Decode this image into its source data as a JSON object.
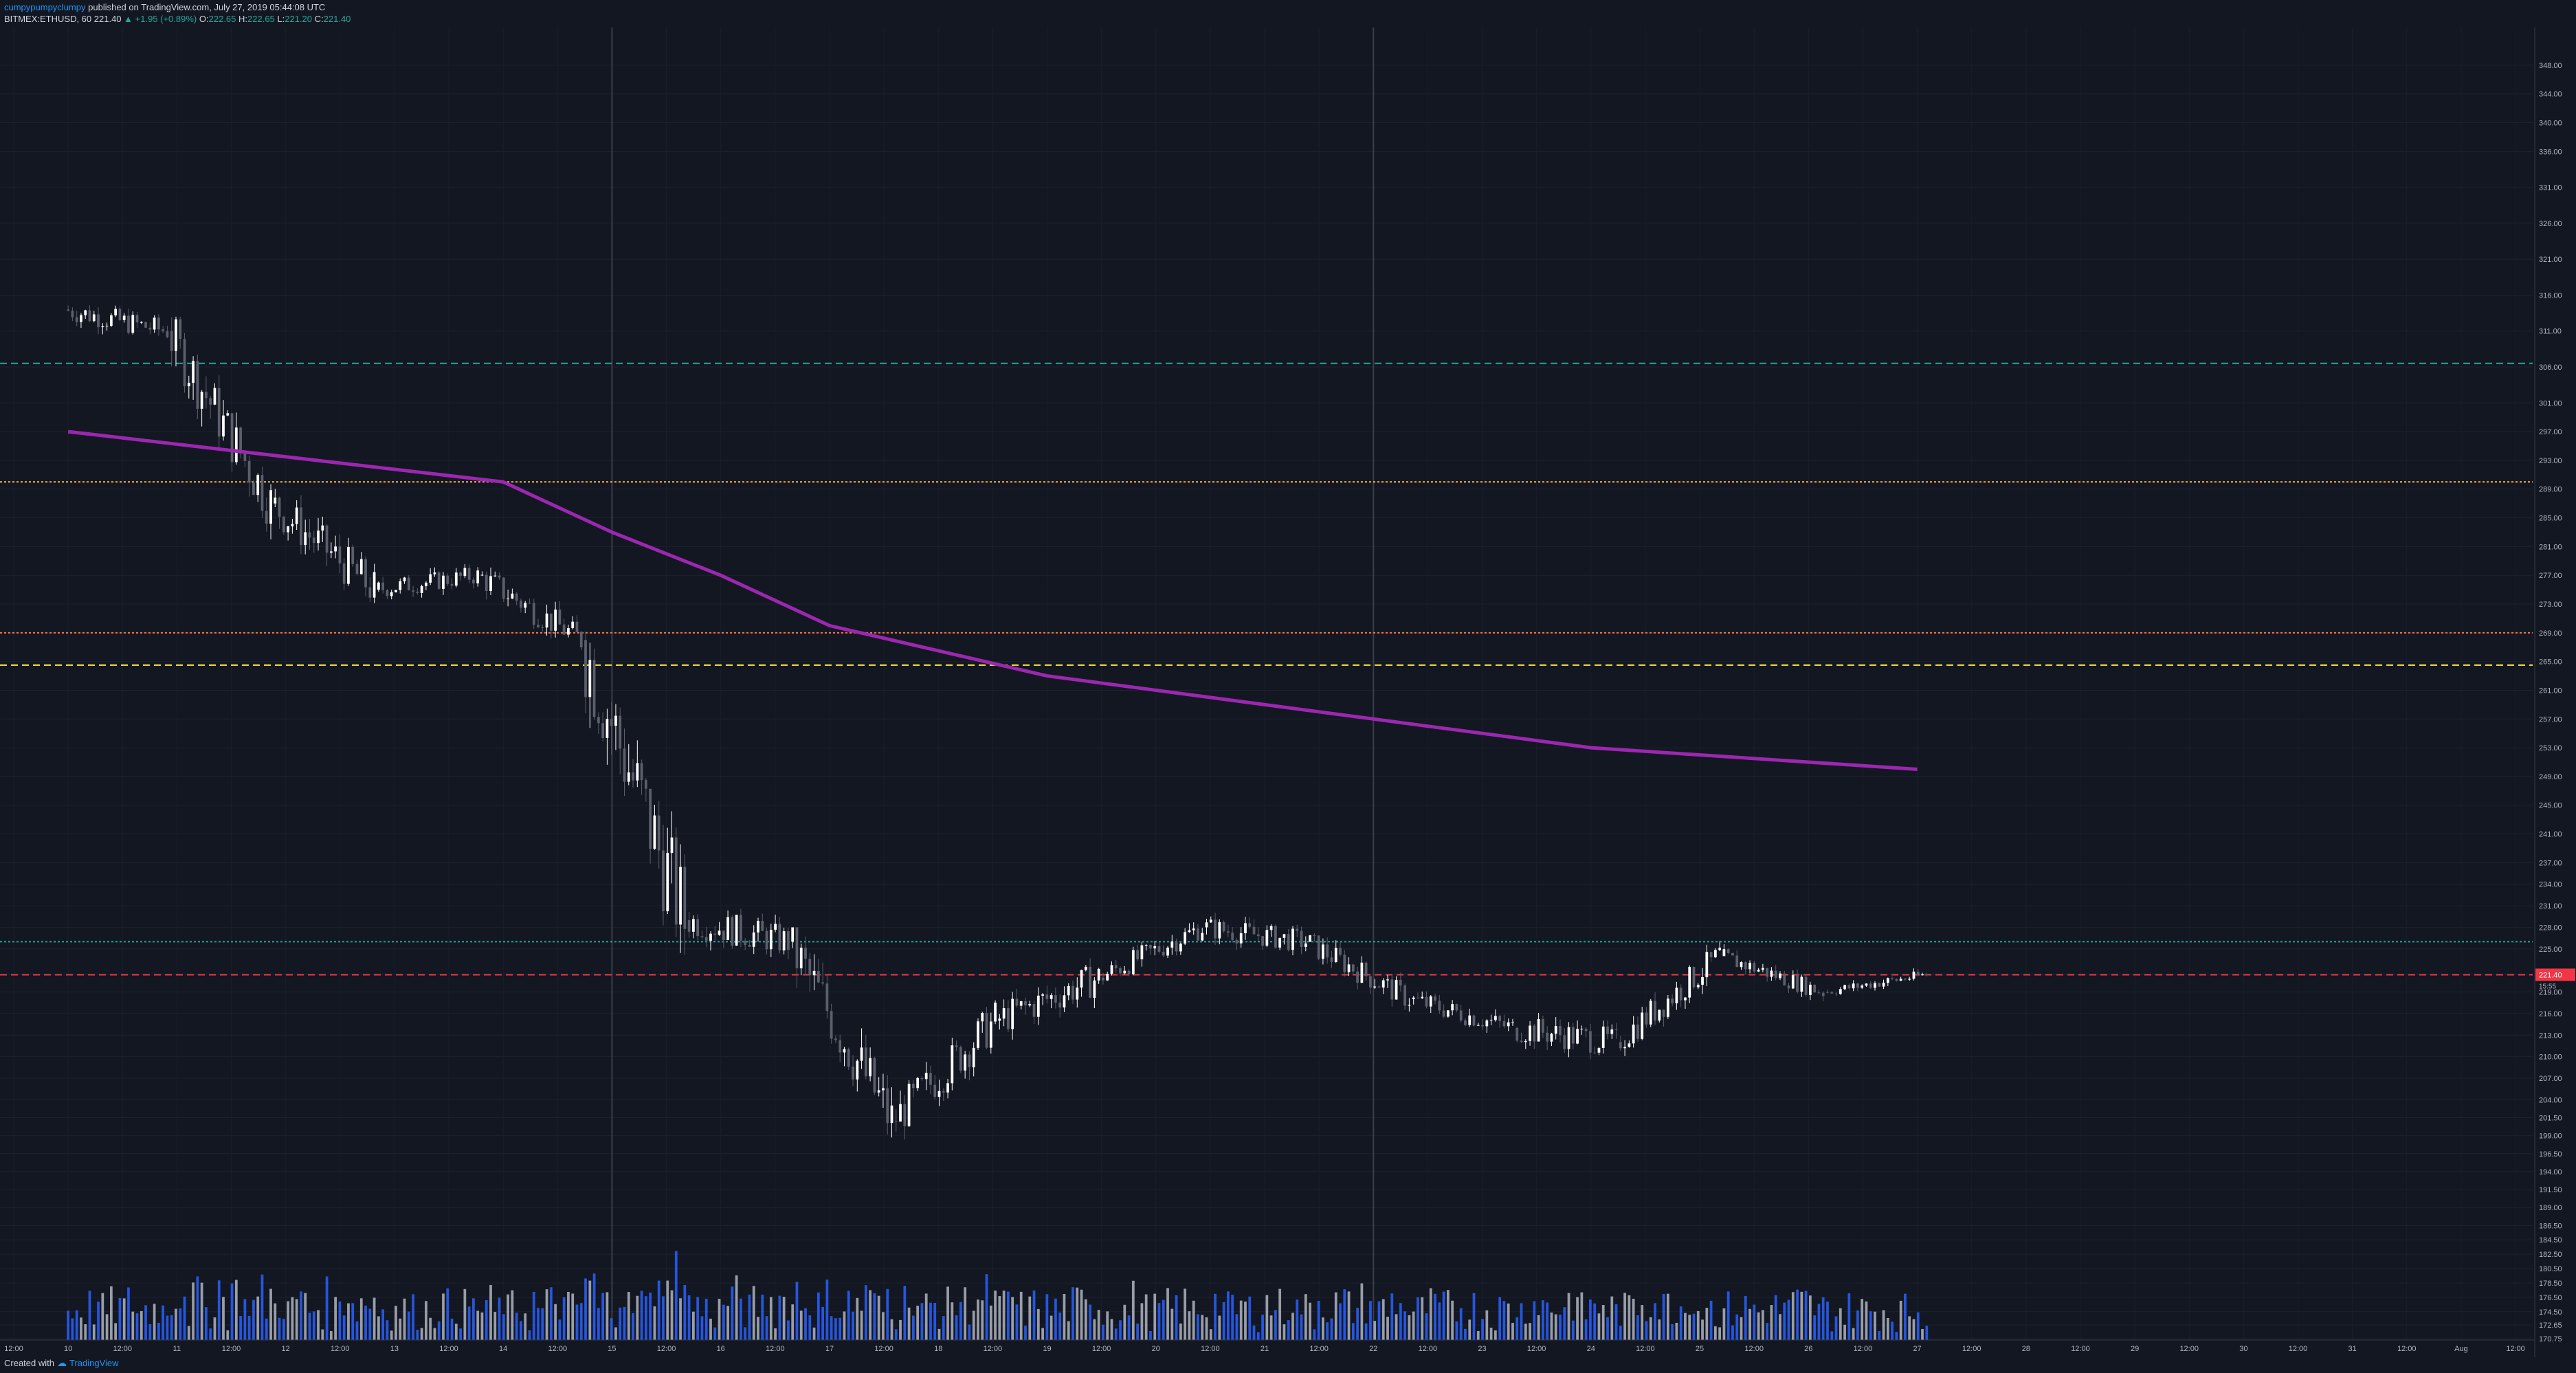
{
  "header": {
    "author": "cumpypumpyclumpy",
    "published": "published on TradingView.com, July 27, 2019 05:44:08 UTC",
    "symbol": "BITMEX:ETHUSD, 60",
    "last": "221.40",
    "change": "▲ +1.95 (+0.89%)",
    "o_label": "O:",
    "o_val": "222.65",
    "h_label": "H:",
    "h_val": "222.65",
    "l_label": "L:",
    "l_val": "221.20",
    "c_label": "C:",
    "c_val": "221.40"
  },
  "footer": {
    "created_with": "Created with",
    "brand": "TradingView"
  },
  "colors": {
    "background": "#131722",
    "up": "#ffffff",
    "down": "#5b5f6b",
    "vwap": "#9c27b0",
    "price_label": "#f23645",
    "volume_up": "#b2b5be",
    "volume_down": "#2962ff"
  },
  "chart_data": {
    "type": "candlestick",
    "y_axis_ticks": [
      348.0,
      344.0,
      340.0,
      336.0,
      331.0,
      326.0,
      321.0,
      316.0,
      311.0,
      306.0,
      301.0,
      297.0,
      293.0,
      289.0,
      285.0,
      281.0,
      277.0,
      273.0,
      269.0,
      265.0,
      261.0,
      257.0,
      253.0,
      249.0,
      245.0,
      241.0,
      237.0,
      234.0,
      231.0,
      228.0,
      225.0,
      221.4,
      219.0,
      216.0,
      213.0,
      210.0,
      207.0,
      204.0,
      201.5,
      199.0,
      196.5,
      194.0,
      191.5,
      189.0,
      186.5,
      184.5,
      182.5,
      180.5,
      178.5,
      176.5,
      174.5,
      172.65,
      170.75
    ],
    "y_axis_labels": [
      "348.00",
      "344.00",
      "340.00",
      "336.00",
      "331.00",
      "326.00",
      "321.00",
      "316.00",
      "311.00",
      "306.00",
      "301.00",
      "297.00",
      "293.00",
      "289.00",
      "285.00",
      "281.00",
      "277.00",
      "273.00",
      "269.00",
      "265.00",
      "261.00",
      "257.00",
      "253.00",
      "249.00",
      "245.00",
      "241.00",
      "237.00",
      "234.00",
      "231.00",
      "228.00",
      "225.00",
      "221.40",
      "219.00",
      "216.00",
      "213.00",
      "210.00",
      "207.00",
      "204.00",
      "201.50",
      "199.00",
      "196.50",
      "194.00",
      "191.50",
      "189.00",
      "186.50",
      "184.50",
      "182.50",
      "180.50",
      "178.50",
      "176.50",
      "174.50",
      "172.65",
      "170.75"
    ],
    "x_axis_labels": [
      "12:00",
      "10",
      "12:00",
      "11",
      "12:00",
      "12",
      "12:00",
      "13",
      "12:00",
      "14",
      "12:00",
      "15",
      "12:00",
      "16",
      "12:00",
      "17",
      "12:00",
      "18",
      "12:00",
      "19",
      "12:00",
      "20",
      "12:00",
      "21",
      "12:00",
      "22",
      "12:00",
      "23",
      "12:00",
      "24",
      "12:00",
      "25",
      "12:00",
      "26",
      "12:00",
      "27",
      "12:00",
      "28",
      "12:00",
      "29",
      "12:00",
      "30",
      "12:00",
      "31",
      "12:00",
      "Aug",
      "12:00"
    ],
    "current_price": "221.40",
    "countdown": "15:55",
    "price_range": [
      170.75,
      350.0
    ],
    "daily_closes": [
      {
        "day": "10",
        "open": 314,
        "high": 317,
        "low": 304,
        "close": 311
      },
      {
        "day": "11",
        "open": 311,
        "high": 313,
        "low": 282,
        "close": 287
      },
      {
        "day": "12",
        "open": 287,
        "high": 292,
        "low": 268,
        "close": 275
      },
      {
        "day": "13",
        "open": 275,
        "high": 281,
        "low": 270,
        "close": 277
      },
      {
        "day": "14",
        "open": 277,
        "high": 279,
        "low": 263,
        "close": 268
      },
      {
        "day": "15",
        "open": 268,
        "high": 270,
        "low": 213,
        "close": 229
      },
      {
        "day": "16",
        "open": 229,
        "high": 236,
        "low": 218,
        "close": 226
      },
      {
        "day": "17",
        "open": 226,
        "high": 228,
        "low": 193,
        "close": 201
      },
      {
        "day": "18",
        "open": 201,
        "high": 220,
        "low": 196,
        "close": 215
      },
      {
        "day": "19",
        "open": 215,
        "high": 231,
        "low": 212,
        "close": 221
      },
      {
        "day": "20",
        "open": 221,
        "high": 232,
        "low": 219,
        "close": 228
      },
      {
        "day": "21",
        "open": 228,
        "high": 236,
        "low": 223,
        "close": 226
      },
      {
        "day": "22",
        "open": 226,
        "high": 229,
        "low": 215,
        "close": 218
      },
      {
        "day": "23",
        "open": 218,
        "high": 221,
        "low": 209,
        "close": 214
      },
      {
        "day": "24",
        "open": 214,
        "high": 219,
        "low": 203,
        "close": 212
      },
      {
        "day": "25",
        "open": 212,
        "high": 227,
        "low": 210,
        "close": 224
      },
      {
        "day": "26",
        "open": 224,
        "high": 226,
        "low": 216,
        "close": 219
      },
      {
        "day": "27",
        "open": 219,
        "high": 224,
        "low": 218,
        "close": 221.4
      }
    ],
    "vwap": [
      {
        "day": "10",
        "value": 297
      },
      {
        "day": "14",
        "value": 290
      },
      {
        "day": "15",
        "value": 283
      },
      {
        "day": "16",
        "value": 277
      },
      {
        "day": "17",
        "value": 270
      },
      {
        "day": "19",
        "value": 263
      },
      {
        "day": "21",
        "value": 259
      },
      {
        "day": "22",
        "value": 257
      },
      {
        "day": "24",
        "value": 253
      },
      {
        "day": "27",
        "value": 250
      }
    ],
    "horizontal_levels": [
      {
        "value": 306.5,
        "style": "dashed",
        "color": "#26a69a"
      },
      {
        "value": 290.0,
        "style": "dotted",
        "color": "#ffb74d"
      },
      {
        "value": 269.0,
        "style": "dotted",
        "color": "#ff7043"
      },
      {
        "value": 264.5,
        "style": "dashed",
        "color": "#ffeb3b"
      },
      {
        "value": 226.0,
        "style": "dotted",
        "color": "#26a69a"
      },
      {
        "value": 221.4,
        "style": "dashed",
        "color": "#f23645"
      }
    ]
  }
}
